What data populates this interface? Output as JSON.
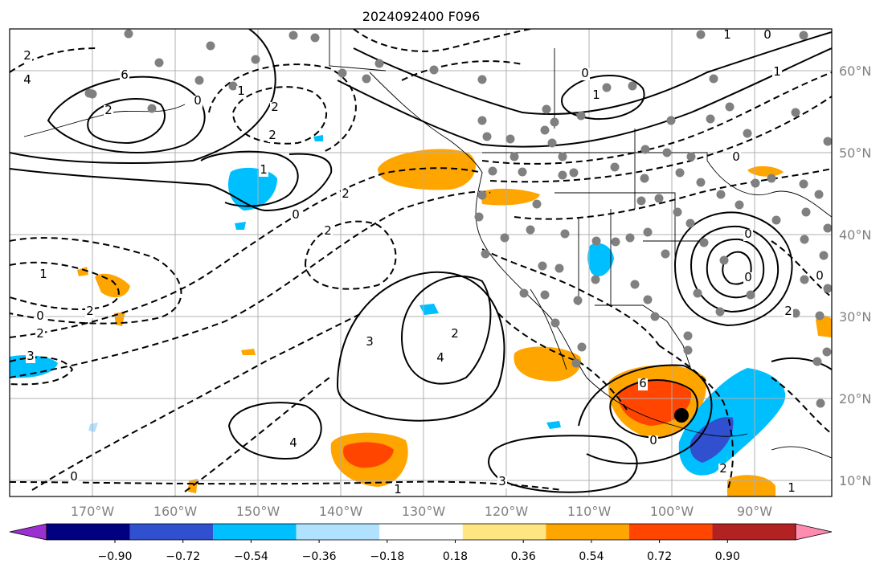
{
  "title": "2024092400 F096",
  "lon_labels": [
    "170°W",
    "160°W",
    "150°W",
    "140°W",
    "130°W",
    "120°W",
    "110°W",
    "100°W",
    "90°W"
  ],
  "lat_labels": [
    "60°N",
    "50°N",
    "40°N",
    "30°N",
    "20°N",
    "10°N"
  ],
  "colorbar": {
    "tick_labels": [
      "−0.90",
      "−0.72",
      "−0.54",
      "−0.36",
      "−0.18",
      "0.18",
      "0.36",
      "0.54",
      "0.72",
      "0.90"
    ],
    "colors": [
      "#9b30d0",
      "#000080",
      "#3050d0",
      "#00bfff",
      "#b0e2ff",
      "#ffffff",
      "#ffe680",
      "#ffa500",
      "#ff4500",
      "#b22222",
      "#ff8cb0"
    ]
  },
  "contour_labels": [
    "2",
    "4",
    "6",
    "2",
    "0",
    "1",
    "2",
    "2",
    "1",
    "0",
    "2",
    "2",
    "1",
    "0",
    "2",
    "2",
    "3",
    "2",
    "4",
    "3",
    "4",
    "0",
    "1",
    "3",
    "6",
    "0",
    "2",
    "1",
    "0",
    "2",
    "0",
    "0",
    "0",
    "1",
    "0",
    "1",
    "1",
    "0"
  ],
  "storm_marker": {
    "lon": "98°W",
    "lat": "18°N"
  }
}
